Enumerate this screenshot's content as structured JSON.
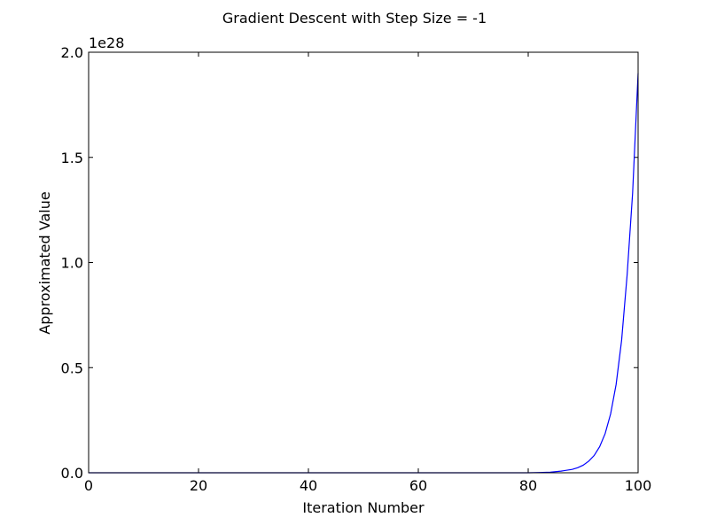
{
  "chart_data": {
    "type": "line",
    "title": "Gradient Descent with Step Size = -1",
    "xlabel": "Iteration Number",
    "ylabel": "Approximated Value",
    "y_offset_label": "1e28",
    "xlim": [
      0,
      100
    ],
    "ylim": [
      0,
      2.0
    ],
    "x_ticks": [
      0,
      20,
      40,
      60,
      80,
      100
    ],
    "x_tick_labels": [
      "0",
      "20",
      "40",
      "60",
      "80",
      "100"
    ],
    "y_ticks": [
      0,
      0.5,
      1.0,
      1.5,
      2.0
    ],
    "y_tick_labels": [
      "0.0",
      "0.5",
      "1.0",
      "1.5",
      "2.0"
    ],
    "grid": false,
    "series": [
      {
        "color": "#0000ff",
        "x": [
          0,
          80,
          82,
          84,
          86,
          88,
          89,
          90,
          91,
          92,
          93,
          94,
          95,
          96,
          97,
          98,
          99,
          100
        ],
        "y": [
          0,
          0,
          0.001,
          0.003,
          0.008,
          0.016,
          0.024,
          0.036,
          0.055,
          0.082,
          0.124,
          0.186,
          0.28,
          0.42,
          0.63,
          0.94,
          1.33,
          1.9
        ]
      }
    ]
  }
}
